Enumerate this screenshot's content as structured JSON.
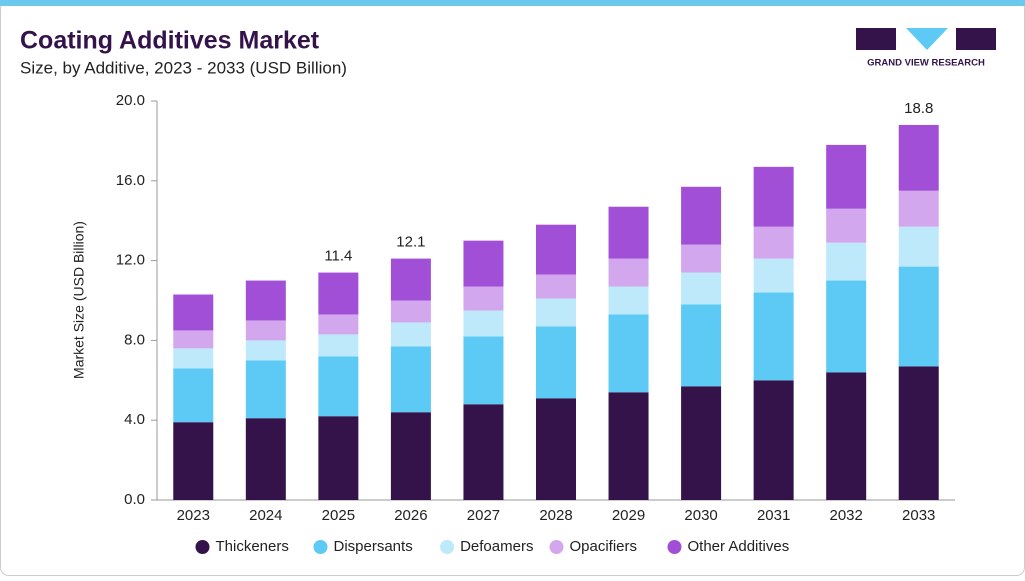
{
  "chart_data": {
    "type": "stacked_bar",
    "title": "Coating Additives Market",
    "subtitle": "Size, by Additive, 2023 - 2033 (USD Billion)",
    "logo_text": "GRAND VIEW RESEARCH",
    "y_label": "Market Size (USD Billion)",
    "categories": [
      "2023",
      "2024",
      "2025",
      "2026",
      "2027",
      "2028",
      "2029",
      "2030",
      "2031",
      "2032",
      "2033"
    ],
    "series": [
      {
        "name": "Thickeners",
        "color": "#34134a",
        "values": [
          3.9,
          4.1,
          4.2,
          4.4,
          4.8,
          5.1,
          5.4,
          5.7,
          6.0,
          6.4,
          6.7
        ]
      },
      {
        "name": "Dispersants",
        "color": "#5ccaf5",
        "values": [
          2.7,
          2.9,
          3.0,
          3.3,
          3.4,
          3.6,
          3.9,
          4.1,
          4.4,
          4.6,
          5.0
        ]
      },
      {
        "name": "Defoamers",
        "color": "#bde9fa",
        "values": [
          1.0,
          1.0,
          1.1,
          1.2,
          1.3,
          1.4,
          1.4,
          1.6,
          1.7,
          1.9,
          2.0
        ]
      },
      {
        "name": "Opacifiers",
        "color": "#d3a7ee",
        "values": [
          0.9,
          1.0,
          1.0,
          1.1,
          1.2,
          1.2,
          1.4,
          1.4,
          1.6,
          1.7,
          1.8
        ]
      },
      {
        "name": "Other Additives",
        "color": "#a24fd8",
        "values": [
          1.8,
          2.0,
          2.1,
          2.1,
          2.3,
          2.5,
          2.6,
          2.9,
          3.0,
          3.2,
          3.3
        ]
      }
    ],
    "total_labels": [
      null,
      null,
      11.4,
      12.1,
      null,
      null,
      null,
      null,
      null,
      null,
      18.8
    ],
    "ylim": [
      0,
      20
    ],
    "yticks": [
      {
        "value": 0,
        "label": "0.0"
      },
      {
        "value": 4,
        "label": "4.0"
      },
      {
        "value": 8,
        "label": "8.0"
      },
      {
        "value": 12,
        "label": "12.0"
      },
      {
        "value": 16,
        "label": "16.0"
      },
      {
        "value": 20,
        "label": "20.0"
      }
    ]
  }
}
